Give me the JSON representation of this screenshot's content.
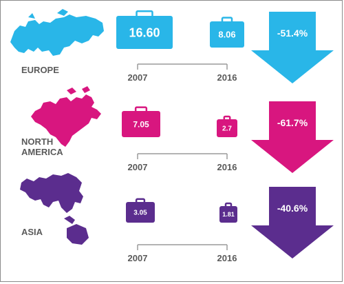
{
  "chart_data": {
    "type": "infographic",
    "years": {
      "start": "2007",
      "end": "2016"
    },
    "regions": [
      {
        "name": "EUROPE",
        "value_2007": "16.60",
        "value_2016": "8.06",
        "change": "-51.4%",
        "color": "#29b6e8"
      },
      {
        "name": "NORTH AMERICA",
        "value_2007": "7.05",
        "value_2016": "2.7",
        "change": "-61.7%",
        "color": "#d8167f"
      },
      {
        "name": "ASIA",
        "value_2007": "3.05",
        "value_2016": "1.81",
        "change": "-40.6%",
        "color": "#5b2d8e"
      }
    ]
  },
  "colors": {
    "axis_line": "#9a9a9a",
    "label_text": "#5a5a5a",
    "value_text": "#ffffff"
  }
}
